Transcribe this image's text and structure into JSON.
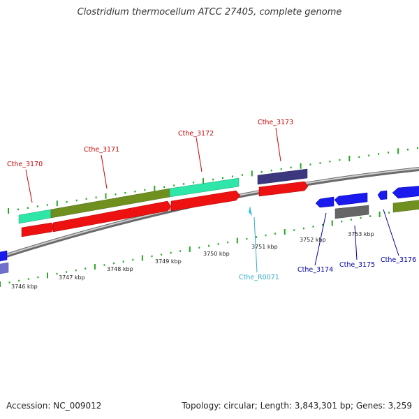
{
  "title": "Clostridium thermocellum ATCC 27405, complete genome",
  "footer": {
    "accession": "Accession: NC_009012",
    "topology": "Topology: circular; Length: 3,843,301 bp; Genes: 3,259"
  },
  "colors": {
    "label_red": "#cc0000",
    "label_blue": "#0000aa",
    "label_cyan": "#33aacc",
    "tick_green": "#22aa22",
    "backbone": "#888888"
  },
  "kbp_labels": [
    "3746 kbp",
    "3747 kbp",
    "3748 kbp",
    "3749 kbp",
    "3750 kbp",
    "3751 kbp",
    "3752 kbp",
    "3753 kbp"
  ],
  "genes": [
    {
      "name": "Cthe_3170",
      "label_color": "red"
    },
    {
      "name": "Cthe_3171",
      "label_color": "red"
    },
    {
      "name": "Cthe_3172",
      "label_color": "red"
    },
    {
      "name": "Cthe_3173",
      "label_color": "red"
    },
    {
      "name": "Cthe_R0071",
      "label_color": "cyan"
    },
    {
      "name": "Cthe_3174",
      "label_color": "blue"
    },
    {
      "name": "Cthe_3175",
      "label_color": "blue"
    },
    {
      "name": "Cthe_3176",
      "label_color": "blue"
    }
  ]
}
